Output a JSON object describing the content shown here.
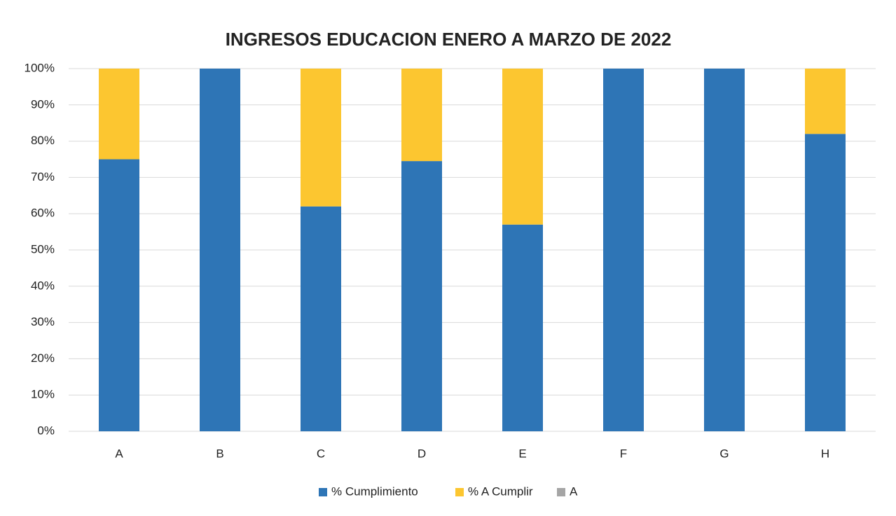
{
  "chart_data": {
    "type": "stacked_bar",
    "title": "INGRESOS EDUCACION ENERO A MARZO DE 2022",
    "categories": [
      "A",
      "B",
      "C",
      "D",
      "E",
      "F",
      "G",
      "H"
    ],
    "series": [
      {
        "name": "% Cumplimiento",
        "color": "#2e75b6",
        "values": [
          75,
          100,
          62,
          74.5,
          57,
          100,
          100,
          82
        ]
      },
      {
        "name": "% A Cumplir",
        "color": "#fcc630",
        "values": [
          25,
          0,
          38,
          25.5,
          43,
          0,
          0,
          18
        ]
      },
      {
        "name": "A",
        "color": "#a5a5a5",
        "values": [
          0,
          0,
          0,
          0,
          0,
          0,
          0,
          0
        ]
      }
    ],
    "ylim": [
      0,
      100
    ],
    "yticks": [
      {
        "value": 0,
        "label": "0%"
      },
      {
        "value": 10,
        "label": "10%"
      },
      {
        "value": 20,
        "label": "20%"
      },
      {
        "value": 30,
        "label": "30%"
      },
      {
        "value": 40,
        "label": "40%"
      },
      {
        "value": 50,
        "label": "50%"
      },
      {
        "value": 60,
        "label": "60%"
      },
      {
        "value": 70,
        "label": "70%"
      },
      {
        "value": 80,
        "label": "80%"
      },
      {
        "value": 90,
        "label": "90%"
      },
      {
        "value": 100,
        "label": "100%"
      }
    ],
    "grid": true,
    "legend": "bottom"
  }
}
